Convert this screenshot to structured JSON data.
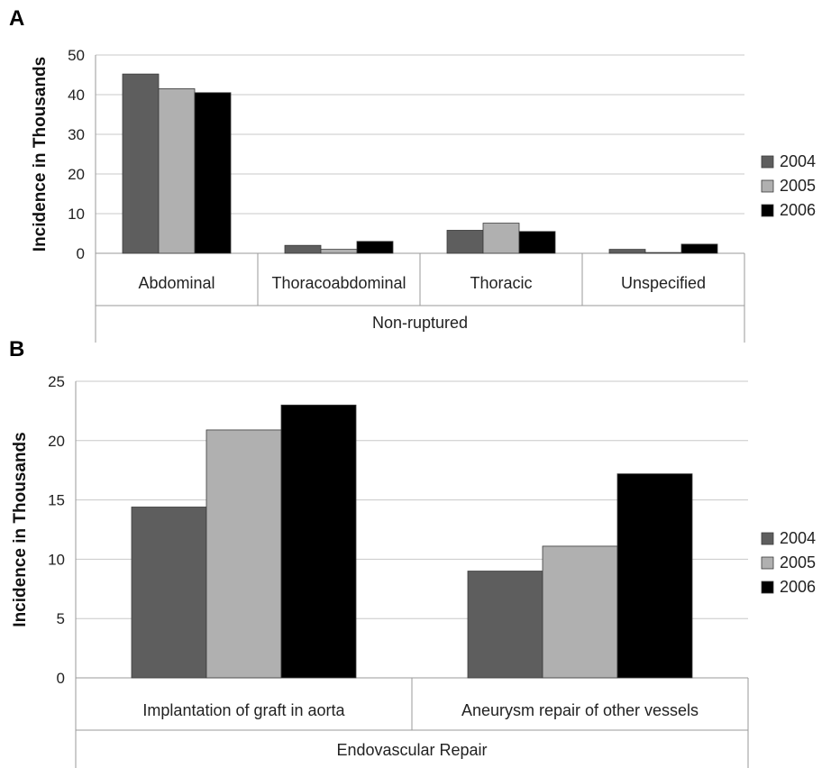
{
  "colors": {
    "2004": "#5e5e5e",
    "2005": "#b0b0b0",
    "2006": "#000000"
  },
  "chart_data": [
    {
      "panel": "A",
      "type": "bar",
      "categories": [
        "Abdominal",
        "Thoracoabdominal",
        "Thoracic",
        "Unspecified"
      ],
      "group_label": "Non-ruptured",
      "ylabel": "Incidence in Thousands",
      "ylim": [
        0,
        50
      ],
      "yticks": [
        0,
        10,
        20,
        30,
        40,
        50
      ],
      "legend": "right",
      "grid": true,
      "series": [
        {
          "name": "2004",
          "values": [
            45.2,
            2.0,
            5.8,
            1.0
          ]
        },
        {
          "name": "2005",
          "values": [
            41.5,
            1.0,
            7.6,
            0.2
          ]
        },
        {
          "name": "2006",
          "values": [
            40.5,
            3.0,
            5.5,
            2.3
          ]
        }
      ]
    },
    {
      "panel": "B",
      "type": "bar",
      "categories": [
        "Implantation of graft in aorta",
        "Aneurysm repair of other vessels"
      ],
      "group_label": "Endovascular Repair",
      "ylabel": "Incidence in Thousands",
      "ylim": [
        0,
        25
      ],
      "yticks": [
        0,
        5,
        10,
        15,
        20,
        25
      ],
      "legend": "right",
      "grid": true,
      "series": [
        {
          "name": "2004",
          "values": [
            14.4,
            9.0
          ]
        },
        {
          "name": "2005",
          "values": [
            20.9,
            11.1
          ]
        },
        {
          "name": "2006",
          "values": [
            23.0,
            17.2
          ]
        }
      ]
    }
  ]
}
